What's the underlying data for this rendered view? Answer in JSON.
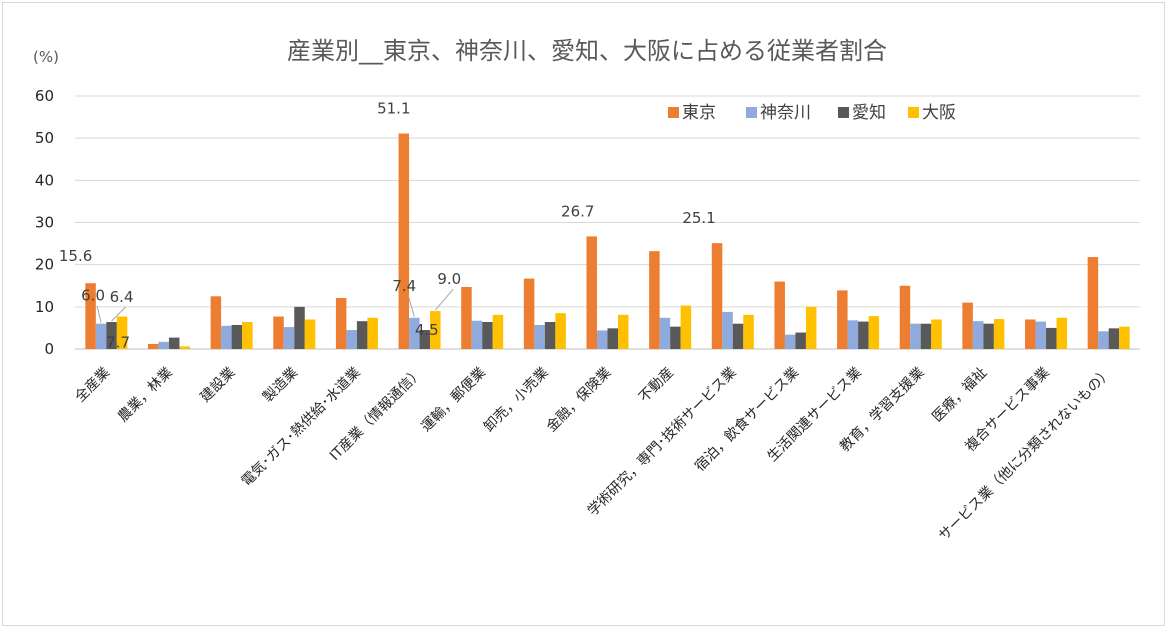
{
  "chart_data": {
    "type": "bar",
    "title": "産業別__東京、神奈川、愛知、大阪に占める従業者割合",
    "unit_label": "(%)",
    "ylim": [
      0,
      60
    ],
    "yticks": [
      "0",
      "10",
      "20",
      "30",
      "40",
      "50",
      "60"
    ],
    "grid": true,
    "legend_position": "top-right",
    "categories": [
      "全産業",
      "農業，林業",
      "建設業",
      "製造業",
      "電気･ガス･熱供給･水道業",
      "IT産業（情報通信）",
      "運輸，郵便業",
      "卸売，小売業",
      "金融，保険業",
      "不動産",
      "学術研究，専門･技術サービス業",
      "宿泊，飲食サービス業",
      "生活関連サービス業",
      "教育，学習支援業",
      "医療，福祉",
      "複合サービス事業",
      "サービス業（他に分類されないもの）"
    ],
    "series": [
      {
        "name": "東京",
        "color": "#ed7d31",
        "values": [
          15.6,
          1.2,
          12.5,
          7.7,
          12.1,
          51.1,
          14.7,
          16.7,
          26.7,
          23.2,
          25.1,
          16.0,
          13.9,
          15.0,
          11.0,
          7.0,
          21.8
        ]
      },
      {
        "name": "神奈川",
        "color": "#8faadc",
        "values": [
          6.0,
          1.7,
          5.5,
          5.2,
          4.5,
          7.4,
          6.7,
          5.7,
          4.4,
          7.4,
          8.8,
          3.4,
          6.8,
          6.0,
          6.6,
          6.5,
          4.2
        ]
      },
      {
        "name": "愛知",
        "color": "#595959",
        "values": [
          6.4,
          2.7,
          5.7,
          10.0,
          6.6,
          4.5,
          6.4,
          6.4,
          4.9,
          5.3,
          6.0,
          3.9,
          6.5,
          6.0,
          6.0,
          5.0,
          4.9
        ]
      },
      {
        "name": "大阪",
        "color": "#ffc000",
        "values": [
          7.7,
          0.6,
          6.4,
          7.0,
          7.4,
          9.0,
          8.1,
          8.5,
          8.1,
          10.3,
          8.1,
          10.0,
          7.8,
          7.0,
          7.1,
          7.4,
          5.3
        ]
      }
    ],
    "data_labels": [
      {
        "text": "15.6",
        "category": 0,
        "series": 0
      },
      {
        "text": "6.0",
        "category": 0,
        "series": 1
      },
      {
        "text": "6.4",
        "category": 0,
        "series": 2
      },
      {
        "text": "7.7",
        "category": 0,
        "series": 3
      },
      {
        "text": "51.1",
        "category": 5,
        "series": 0
      },
      {
        "text": "7.4",
        "category": 5,
        "series": 1
      },
      {
        "text": "4.5",
        "category": 5,
        "series": 2
      },
      {
        "text": "9.0",
        "category": 5,
        "series": 3
      },
      {
        "text": "26.7",
        "category": 8,
        "series": 0
      },
      {
        "text": "25.1",
        "category": 10,
        "series": 0
      }
    ]
  }
}
